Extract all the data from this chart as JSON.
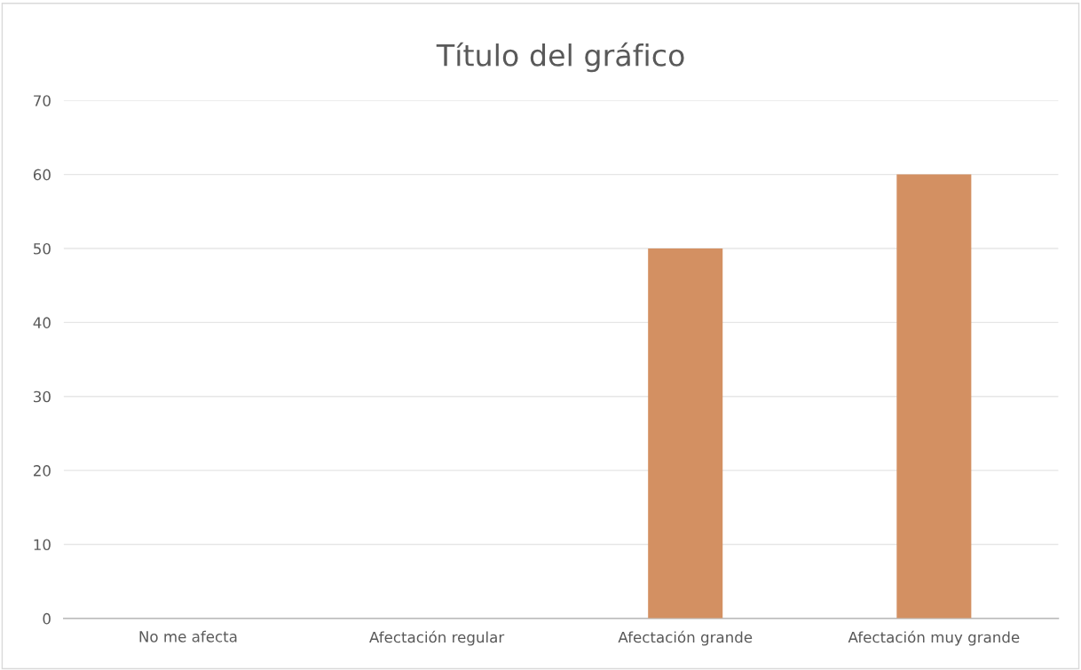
{
  "chart_data": {
    "type": "bar",
    "title": "Título del gráfico",
    "categories": [
      "No me afecta",
      "Afectación regular",
      "Afectación grande",
      "Afectación muy grande"
    ],
    "values": [
      0,
      0,
      50,
      60
    ],
    "color": "#d39062",
    "ylim": [
      0,
      70
    ],
    "yticks": [
      0,
      10,
      20,
      30,
      40,
      50,
      60,
      70
    ],
    "grid": "y"
  }
}
